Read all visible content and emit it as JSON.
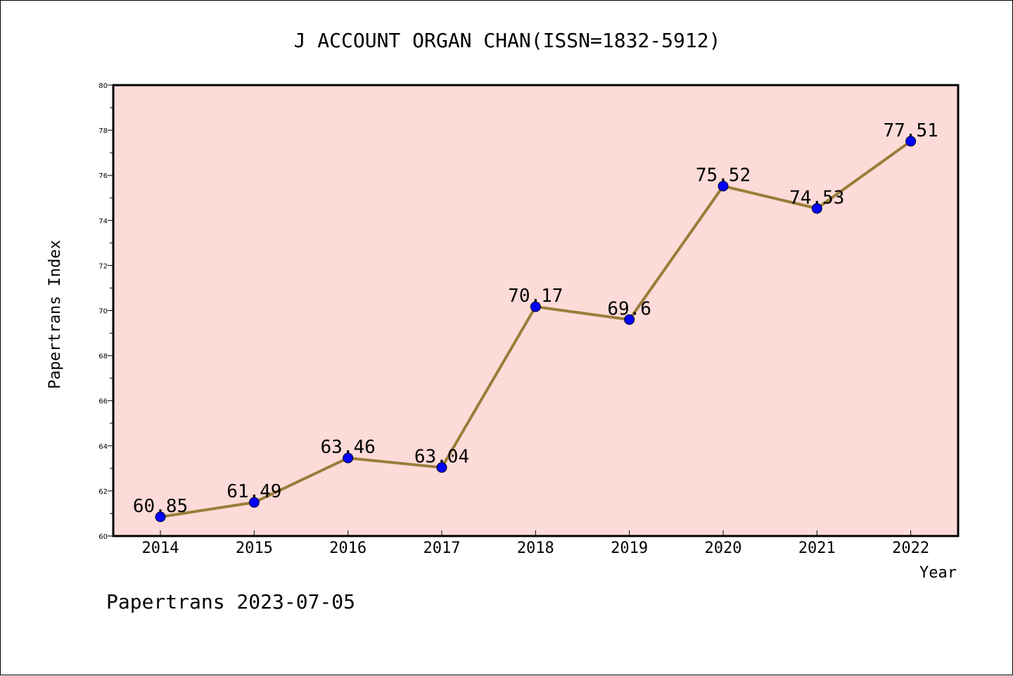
{
  "chart_data": {
    "type": "line",
    "title": "J ACCOUNT ORGAN CHAN(ISSN=1832-5912)",
    "xlabel": "Year",
    "ylabel": "Papertrans Index",
    "x": [
      "2014",
      "2015",
      "2016",
      "2017",
      "2018",
      "2019",
      "2020",
      "2021",
      "2022"
    ],
    "values": [
      60.85,
      61.49,
      63.46,
      63.04,
      70.17,
      69.6,
      75.52,
      74.53,
      77.51
    ],
    "data_labels": [
      "60.85",
      "61.49",
      "63.46",
      "63.04",
      "70.17",
      "69.6",
      "75.52",
      "74.53",
      "77.51"
    ],
    "ylim": [
      60,
      80
    ],
    "yticks": [
      "60",
      "62",
      "64",
      "66",
      "68",
      "70",
      "72",
      "74",
      "76",
      "78",
      "80"
    ],
    "grid": false,
    "legend": "none",
    "footer": "Papertrans 2023-07-05",
    "colors": {
      "plot_background": "#fddbd8",
      "line": "#9a7d3a",
      "marker": "#0000ff",
      "axes": "#000000"
    }
  }
}
